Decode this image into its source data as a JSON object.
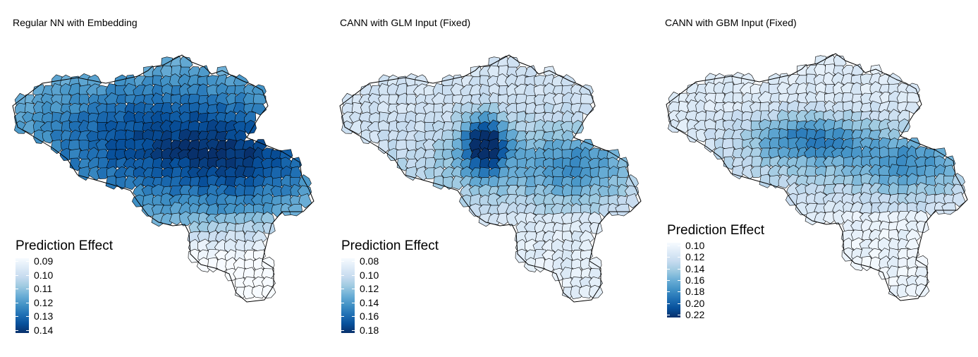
{
  "panels": [
    {
      "title": "Regular NN with Embedding",
      "legend": {
        "title": "Prediction Effect",
        "labels": [
          "0.09",
          "0.10",
          "0.11",
          "0.12",
          "0.13",
          "0.14"
        ],
        "min_color": "#f7fbff",
        "max_color": "#08306b"
      }
    },
    {
      "title": "CANN with GLM Input (Fixed)",
      "legend": {
        "title": "Prediction Effect",
        "labels": [
          "0.08",
          "0.10",
          "0.12",
          "0.14",
          "0.16",
          "0.18"
        ],
        "min_color": "#f7fbff",
        "max_color": "#08306b"
      }
    },
    {
      "title": "CANN with GBM Input (Fixed)",
      "legend": {
        "title": "Prediction Effect",
        "labels": [
          "0.10",
          "0.12",
          "0.14",
          "0.16",
          "0.18",
          "0.20",
          "0.22"
        ],
        "min_color": "#f7fbff",
        "max_color": "#08306b"
      }
    }
  ]
}
